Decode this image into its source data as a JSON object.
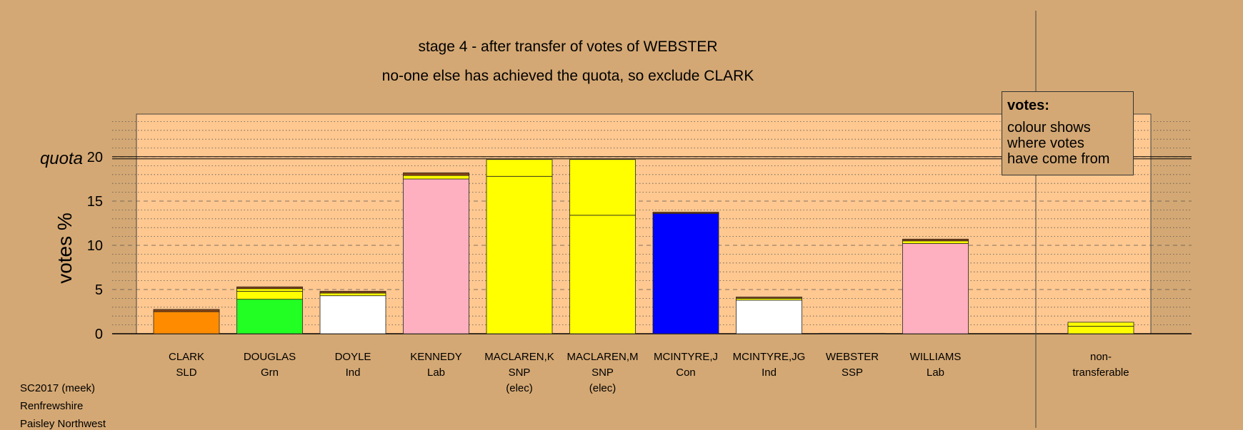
{
  "titles": {
    "line1": "stage 4 - after transfer of votes of WEBSTER",
    "line2": "no-one else has achieved the quota, so exclude CLARK"
  },
  "legend": {
    "heading": "votes:",
    "lines": [
      "colour shows",
      "where votes",
      "have come from"
    ]
  },
  "footer": {
    "election": "SC2017 (meek)",
    "council": "Renfrewshire",
    "ward": "Paisley Northwest"
  },
  "chart_data": {
    "type": "bar",
    "stacked": true,
    "ylabel": "votes %",
    "quota_label": "quota",
    "quota": 19.9,
    "ylim": [
      0,
      25
    ],
    "yticks": [
      0,
      5,
      10,
      15,
      20
    ],
    "grid": true,
    "legend_position": "top-right",
    "colors": {
      "SLD": "#ff8c00",
      "Grn": "#22ff22",
      "Ind": "#ffffff",
      "Lab": "#ffb0c0",
      "SNP": "#ffff00",
      "Con": "#0000ff",
      "SSP": "#cc0000",
      "brown": "#8b4513",
      "olive": "#808000"
    },
    "candidates": [
      {
        "name": "CLARK",
        "party": "SLD",
        "note": "",
        "segments": [
          {
            "c": "SLD",
            "v": 2.5
          },
          {
            "c": "brown",
            "v": 0.25
          }
        ]
      },
      {
        "name": "DOUGLAS",
        "party": "Grn",
        "note": "",
        "segments": [
          {
            "c": "Grn",
            "v": 3.9
          },
          {
            "c": "SNP",
            "v": 0.9
          },
          {
            "c": "SNP",
            "v": 0.3
          },
          {
            "c": "brown",
            "v": 0.2
          }
        ]
      },
      {
        "name": "DOYLE",
        "party": "Ind",
        "note": "",
        "segments": [
          {
            "c": "Ind",
            "v": 4.3
          },
          {
            "c": "SNP",
            "v": 0.3
          },
          {
            "c": "brown",
            "v": 0.2
          }
        ]
      },
      {
        "name": "KENNEDY",
        "party": "Lab",
        "note": "",
        "segments": [
          {
            "c": "Lab",
            "v": 17.5
          },
          {
            "c": "SNP",
            "v": 0.4
          },
          {
            "c": "brown",
            "v": 0.3
          }
        ]
      },
      {
        "name": "MACLAREN,K",
        "party": "SNP",
        "note": "(elec)",
        "segments": [
          {
            "c": "SNP",
            "v": 17.8
          },
          {
            "c": "SNP",
            "v": 1.9
          }
        ]
      },
      {
        "name": "MACLAREN,M",
        "party": "SNP",
        "note": "(elec)",
        "segments": [
          {
            "c": "SNP",
            "v": 13.4
          },
          {
            "c": "SNP",
            "v": 6.3
          }
        ]
      },
      {
        "name": "MCINTYRE,J",
        "party": "Con",
        "note": "",
        "segments": [
          {
            "c": "Con",
            "v": 13.6
          },
          {
            "c": "brown",
            "v": 0.15
          }
        ]
      },
      {
        "name": "MCINTYRE,JG",
        "party": "Ind",
        "note": "",
        "segments": [
          {
            "c": "Ind",
            "v": 3.8
          },
          {
            "c": "SNP",
            "v": 0.2
          },
          {
            "c": "brown",
            "v": 0.15
          }
        ]
      },
      {
        "name": "WEBSTER",
        "party": "SSP",
        "note": "",
        "segments": [
          {
            "c": "SSP",
            "v": 0.05
          }
        ]
      },
      {
        "name": "WILLIAMS",
        "party": "Lab",
        "note": "",
        "segments": [
          {
            "c": "Lab",
            "v": 10.2
          },
          {
            "c": "SNP",
            "v": 0.3
          },
          {
            "c": "brown",
            "v": 0.2
          }
        ]
      }
    ],
    "nontransferable": {
      "label1": "non-",
      "label2": "transferable",
      "segments": [
        {
          "c": "SNP",
          "v": 0.85
        },
        {
          "c": "SNP",
          "v": 0.45
        }
      ]
    }
  }
}
